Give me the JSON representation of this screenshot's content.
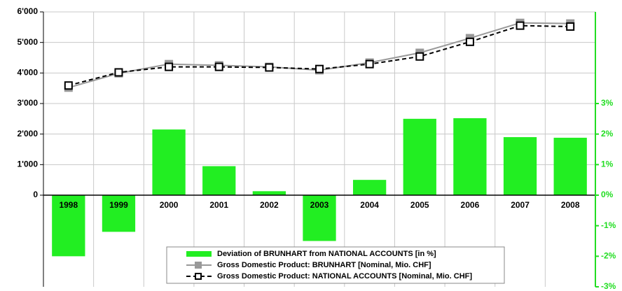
{
  "chart_data": {
    "type": "combo",
    "categories": [
      "1998",
      "1999",
      "2000",
      "2001",
      "2002",
      "2003",
      "2004",
      "2005",
      "2006",
      "2007",
      "2008"
    ],
    "series": [
      {
        "name": "Deviation of BRUNHART from NATIONAL ACCOUNTS [in %]",
        "type": "bar",
        "axis": "y2",
        "color": "#22ee22",
        "values": [
          -2.0,
          -1.2,
          2.15,
          0.95,
          0.13,
          -1.5,
          0.5,
          2.5,
          2.52,
          1.9,
          1.88
        ]
      },
      {
        "name": "Gross Domestic Product: BRUNHART [Nominal, Mio. CHF]",
        "type": "line",
        "color": "#999999",
        "values": [
          3520,
          3990,
          4290,
          4250,
          4200,
          4090,
          4340,
          4660,
          5140,
          5640,
          5620
        ]
      },
      {
        "name": "Gross Domestic Product: NATIONAL ACCOUNTS [Nominal, Mio. CHF]",
        "type": "line",
        "color": "#000000",
        "dashed": true,
        "values": [
          3590,
          4020,
          4200,
          4200,
          4180,
          4130,
          4290,
          4540,
          5020,
          5550,
          5520
        ]
      }
    ],
    "ylim": [
      -3000,
      6000
    ],
    "yticks": [
      0,
      {
        "value": 1000,
        "label": "1'000"
      },
      {
        "value": 2000,
        "label": "2'000"
      },
      {
        "value": 3000,
        "label": "3'000"
      },
      {
        "value": 4000,
        "label": "4'000"
      },
      {
        "value": 5000,
        "label": "5'000"
      },
      {
        "value": 6000,
        "label": "6'000"
      }
    ],
    "y2lim": [
      -3,
      6
    ],
    "y2ticks": [
      {
        "value": -3,
        "label": "-3%"
      },
      {
        "value": -2,
        "label": "-2%"
      },
      {
        "value": -1,
        "label": "-1%"
      },
      {
        "value": 0,
        "label": "0%"
      },
      {
        "value": 1,
        "label": "1%"
      },
      {
        "value": 2,
        "label": "2%"
      },
      {
        "value": 3,
        "label": "3%"
      }
    ],
    "y2_color": "#22dd22",
    "grid": true
  }
}
